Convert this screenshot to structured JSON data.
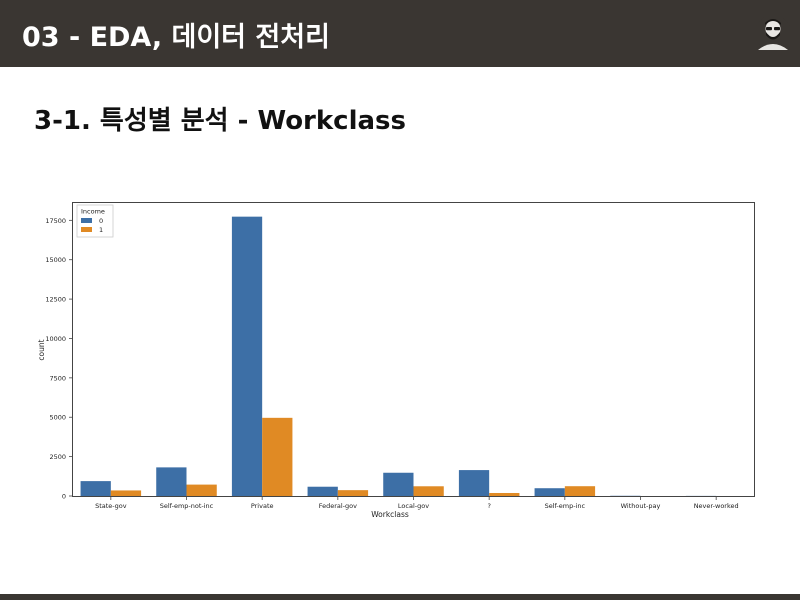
{
  "header": {
    "title": "03 - EDA, 데이터 전처리",
    "avatar_icon": "bearded-man-avatar-icon"
  },
  "slide": {
    "title": "3-1. 특성별 분석 - Workclass"
  },
  "colors": {
    "header_bg": "#3a3632",
    "series_0": "#3d6fa6",
    "series_1": "#e08a24"
  },
  "chart_data": {
    "type": "bar",
    "categories": [
      "State-gov",
      "Self-emp-not-inc",
      "Private",
      "Federal-gov",
      "Local-gov",
      "?",
      "Self-emp-inc",
      "Without-pay",
      "Never-worked"
    ],
    "series": [
      {
        "name": "0",
        "values": [
          945,
          1817,
          17733,
          589,
          1476,
          1645,
          494,
          14,
          7
        ]
      },
      {
        "name": "1",
        "values": [
          353,
          724,
          4963,
          371,
          617,
          191,
          622,
          0,
          0
        ]
      }
    ],
    "xlabel": "Workclass",
    "ylabel": "count",
    "ylim": [
      0,
      18600
    ],
    "yticks": [
      0,
      2500,
      5000,
      7500,
      10000,
      12500,
      15000,
      17500
    ],
    "legend": {
      "title": "Income",
      "placement": "top-left"
    },
    "grid": false
  }
}
